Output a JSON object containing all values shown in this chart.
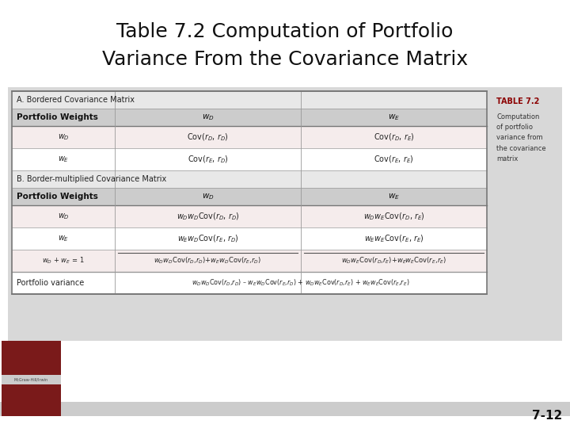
{
  "title_line1": "Table 7.2 Computation of Portfolio",
  "title_line2": "Variance From the Covariance Matrix",
  "title_fontsize": 18,
  "title_color": "#111111",
  "background_color": "#ffffff",
  "table_area_bg": "#d8d8d8",
  "table_bg": "#ffffff",
  "section_a_label": "A. Bordered Covariance Matrix",
  "section_b_label": "B. Border-multiplied Covariance Matrix",
  "sidebar_title": "TABLE 7.2",
  "sidebar_text": "Computation\nof portfolio\nvariance from\nthe covariance\nmatrix",
  "sidebar_title_color": "#8B0000",
  "page_number": "7-12",
  "header_bg": "#cccccc",
  "section_header_bg": "#e8e8e8",
  "row_alt_bg": "#f5ecec",
  "row_bg": "#ffffff",
  "border_color": "#999999",
  "dark_border_color": "#777777",
  "bottom_bar_color": "#cccccc",
  "logo_color": "#7a1a1a"
}
